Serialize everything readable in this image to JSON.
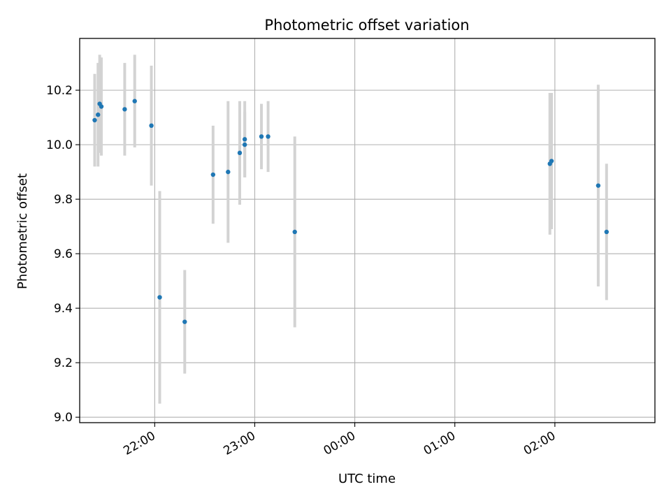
{
  "chart_data": {
    "type": "scatter",
    "title": "Photometric offset variation",
    "xlabel": "UTC time",
    "ylabel": "Photometric offset",
    "x_ticks": [
      "22:00",
      "23:00",
      "00:00",
      "01:00",
      "02:00"
    ],
    "y_ticks": [
      "9.0",
      "9.2",
      "9.4",
      "9.6",
      "9.8",
      "10.0",
      "10.2"
    ],
    "xlim": [
      "21:15",
      "03:00"
    ],
    "ylim": [
      8.98,
      10.39
    ],
    "grid": true,
    "colors": {
      "point": "#1f77b4",
      "errorbar": "#d3d3d3",
      "grid": "#b0b0b0"
    },
    "series": [
      {
        "points": [
          {
            "x": "21:24",
            "y": 10.09,
            "err": 0.17
          },
          {
            "x": "21:26",
            "y": 10.11,
            "err": 0.19
          },
          {
            "x": "21:27",
            "y": 10.15,
            "err": 0.18
          },
          {
            "x": "21:28",
            "y": 10.14,
            "err": 0.18
          },
          {
            "x": "21:42",
            "y": 10.13,
            "err": 0.17
          },
          {
            "x": "21:48",
            "y": 10.16,
            "err": 0.17
          },
          {
            "x": "21:58",
            "y": 10.07,
            "err": 0.22
          },
          {
            "x": "22:03",
            "y": 9.44,
            "err": 0.39
          },
          {
            "x": "22:18",
            "y": 9.35,
            "err": 0.19
          },
          {
            "x": "22:35",
            "y": 9.89,
            "err": 0.18
          },
          {
            "x": "22:44",
            "y": 9.9,
            "err": 0.26
          },
          {
            "x": "22:51",
            "y": 9.97,
            "err": 0.19
          },
          {
            "x": "22:54",
            "y": 10.02,
            "err": 0.14
          },
          {
            "x": "22:54",
            "y": 10.0,
            "err": 0.12
          },
          {
            "x": "23:04",
            "y": 10.03,
            "err": 0.12
          },
          {
            "x": "23:08",
            "y": 10.03,
            "err": 0.13
          },
          {
            "x": "23:24",
            "y": 9.68,
            "err": 0.35
          },
          {
            "x": "01:57",
            "y": 9.93,
            "err": 0.26
          },
          {
            "x": "01:58",
            "y": 9.94,
            "err": 0.25
          },
          {
            "x": "02:26",
            "y": 9.85,
            "err": 0.37
          },
          {
            "x": "02:31",
            "y": 9.68,
            "err": 0.25
          }
        ]
      }
    ]
  }
}
